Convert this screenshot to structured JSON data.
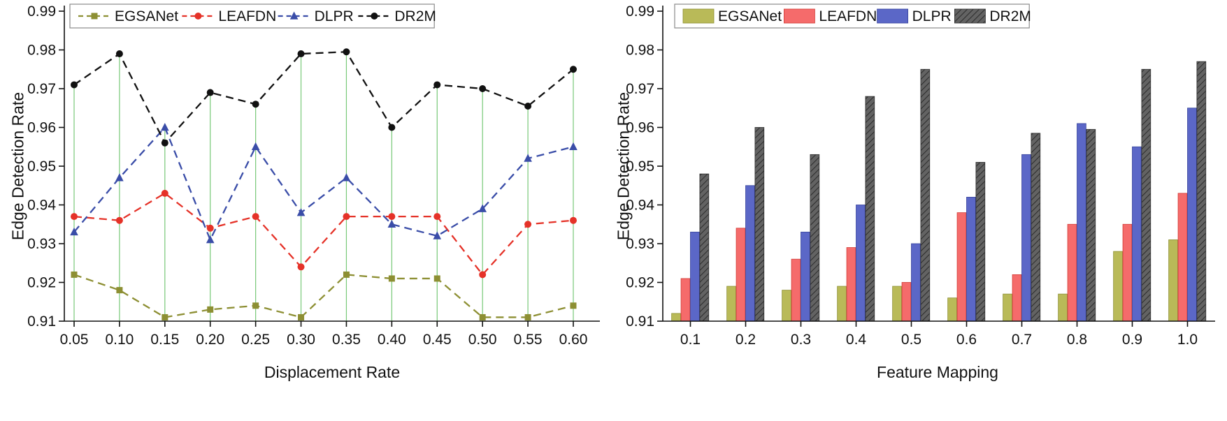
{
  "figure": {
    "background": "#ffffff",
    "axis_color": "#111111",
    "tick_font_size": 21,
    "legend_font_size": 21
  },
  "legend_labels": [
    "EGSANet",
    "LEAFDN",
    "DLPR",
    "DR2M"
  ],
  "chart_data": [
    {
      "type": "line",
      "title": "",
      "xlabel": "Displacement Rate",
      "ylabel": "Edge Detection Rate",
      "x_tick_labels": [
        "0.05",
        "0.10",
        "0.15",
        "0.20",
        "0.25",
        "0.30",
        "0.35",
        "0.40",
        "0.45",
        "0.50",
        "0.55",
        "0.60"
      ],
      "x": [
        0.05,
        0.1,
        0.15,
        0.2,
        0.25,
        0.3,
        0.35,
        0.4,
        0.45,
        0.5,
        0.55,
        0.6
      ],
      "ylim": [
        0.91,
        0.99
      ],
      "yticks": [
        "0.91",
        "0.92",
        "0.93",
        "0.94",
        "0.95",
        "0.96",
        "0.97",
        "0.98",
        "0.99"
      ],
      "grid": false,
      "legend_position": "top-inside",
      "drop_lines_color": "#77c877",
      "series": [
        {
          "name": "EGSANet",
          "color": "#8d8f33",
          "marker": "square",
          "values": [
            0.922,
            0.918,
            0.911,
            0.913,
            0.914,
            0.911,
            0.922,
            0.921,
            0.921,
            0.911,
            0.911,
            0.914
          ]
        },
        {
          "name": "LEAFDN",
          "color": "#e53228",
          "marker": "circle",
          "values": [
            0.937,
            0.936,
            0.943,
            0.934,
            0.937,
            0.924,
            0.937,
            0.937,
            0.937,
            0.922,
            0.935,
            0.936
          ]
        },
        {
          "name": "DLPR",
          "color": "#3a4da8",
          "marker": "triangle",
          "values": [
            0.933,
            0.947,
            0.96,
            0.931,
            0.955,
            0.938,
            0.947,
            0.935,
            0.932,
            0.939,
            0.952,
            0.955
          ]
        },
        {
          "name": "DR2M",
          "color": "#111111",
          "marker": "circle",
          "values": [
            0.971,
            0.979,
            0.956,
            0.969,
            0.966,
            0.979,
            0.9795,
            0.96,
            0.971,
            0.97,
            0.9655,
            0.975
          ]
        }
      ]
    },
    {
      "type": "bar",
      "title": "",
      "xlabel": "Feature Mapping",
      "ylabel": "Edge Detection Rate",
      "categories": [
        "0.1",
        "0.2",
        "0.3",
        "0.4",
        "0.5",
        "0.6",
        "0.7",
        "0.8",
        "0.9",
        "1.0"
      ],
      "ylim": [
        0.91,
        0.99
      ],
      "yticks": [
        "0.91",
        "0.92",
        "0.93",
        "0.94",
        "0.95",
        "0.96",
        "0.97",
        "0.98",
        "0.99"
      ],
      "grid": false,
      "legend_position": "top-inside",
      "series": [
        {
          "name": "EGSANet",
          "color": "#b9ba58",
          "edge": "#8d8f33",
          "hatch": false,
          "values": [
            0.912,
            0.919,
            0.918,
            0.919,
            0.919,
            0.916,
            0.917,
            0.917,
            0.928,
            0.931
          ]
        },
        {
          "name": "LEAFDN",
          "color": "#f56b6b",
          "edge": "#d03a34",
          "hatch": false,
          "values": [
            0.921,
            0.934,
            0.926,
            0.929,
            0.92,
            0.938,
            0.922,
            0.935,
            0.935,
            0.943
          ]
        },
        {
          "name": "DLPR",
          "color": "#5b67c7",
          "edge": "#37449c",
          "hatch": false,
          "values": [
            0.933,
            0.945,
            0.933,
            0.94,
            0.93,
            0.942,
            0.953,
            0.961,
            0.955,
            0.965
          ]
        },
        {
          "name": "DR2M",
          "color": "#636363",
          "edge": "#2f2f2f",
          "hatch": true,
          "values": [
            0.948,
            0.96,
            0.953,
            0.968,
            0.975,
            0.951,
            0.9585,
            0.9595,
            0.975,
            0.977
          ]
        }
      ]
    }
  ]
}
